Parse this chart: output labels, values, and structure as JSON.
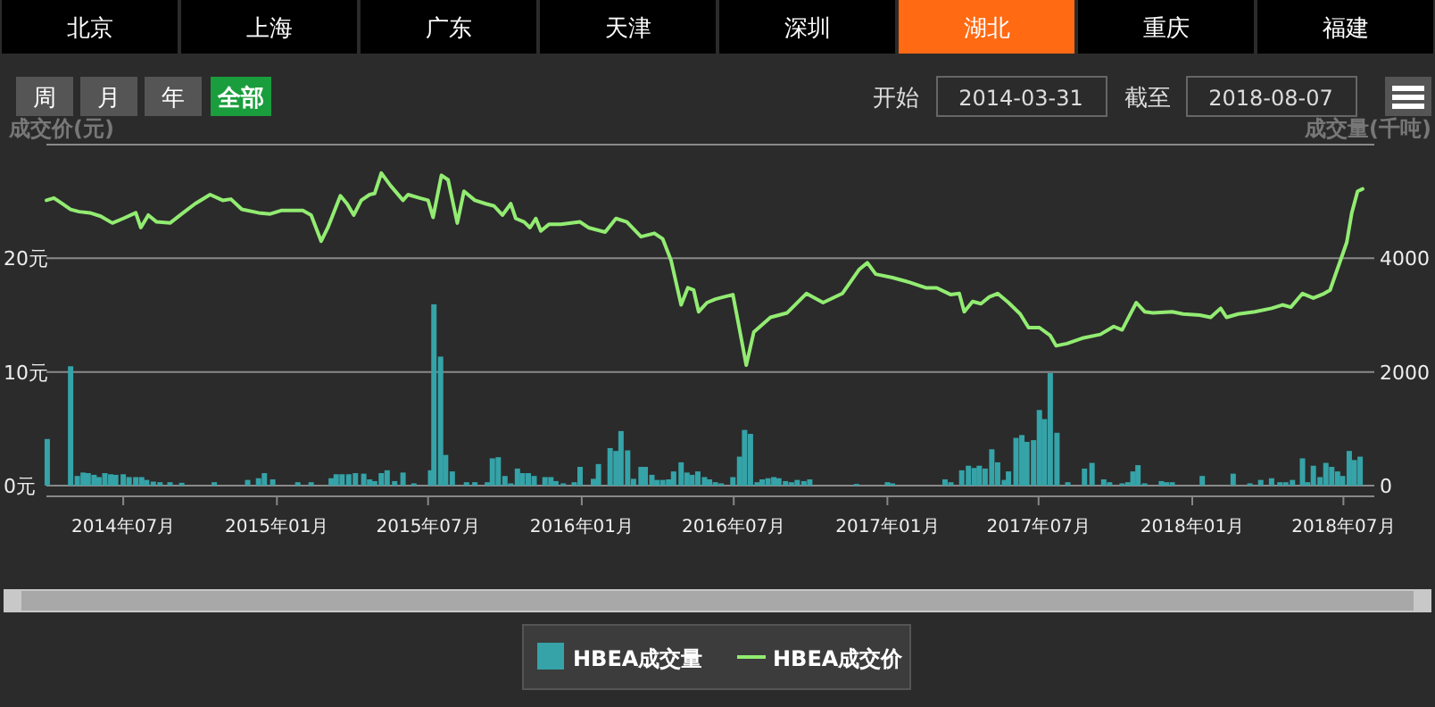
{
  "chart_data": {
    "type": "bar",
    "ylabel": "成交价(元)",
    "y2label": "成交量(千吨)",
    "annotations": [
      "北京",
      "上海",
      "广东",
      "天津",
      "深圳",
      "湖北",
      "重庆",
      "福建",
      "周",
      "月",
      "年",
      "全部",
      "开始",
      "2014-03-31",
      "截至",
      "2018-08-07"
    ],
    "xlim": [
      "2014-03-31",
      "2018-08-07"
    ],
    "xticks": [
      {
        "value": "2014-07-01",
        "label": "2014年07月"
      },
      {
        "value": "2015-01-01",
        "label": "2015年01月"
      },
      {
        "value": "2015-07-01",
        "label": "2015年07月"
      },
      {
        "value": "2016-01-01",
        "label": "2016年01月"
      },
      {
        "value": "2016-07-01",
        "label": "2016年07月"
      },
      {
        "value": "2017-01-01",
        "label": "2017年01月"
      },
      {
        "value": "2017-07-01",
        "label": "2017年07月"
      },
      {
        "value": "2018-01-01",
        "label": "2018年01月"
      },
      {
        "value": "2018-07-01",
        "label": "2018年07月"
      }
    ],
    "ylim": [
      0,
      30
    ],
    "yticks": [
      {
        "value": 0,
        "label": "0元"
      },
      {
        "value": 10,
        "label": "10元"
      },
      {
        "value": 20,
        "label": "20元"
      },
      {
        "value": 30,
        "label": null
      }
    ],
    "y2lim": [
      0,
      6000
    ],
    "y2ticks": [
      0,
      2000,
      4000
    ],
    "grid": "y",
    "legend": "bottom",
    "series": [
      {
        "name": "HBEA成交量",
        "axis": "y2",
        "color": "#35a3a8",
        "x": [
          "2014-04-01",
          "2014-04-29",
          "2014-05-07",
          "2014-05-14",
          "2014-05-20",
          "2014-05-27",
          "2014-06-02",
          "2014-06-09",
          "2014-06-16",
          "2014-06-22",
          "2014-07-01",
          "2014-07-08",
          "2014-07-16",
          "2014-07-23",
          "2014-07-29",
          "2014-08-06",
          "2014-08-14",
          "2014-08-26",
          "2014-09-09",
          "2014-10-18",
          "2014-11-27",
          "2014-12-10",
          "2014-12-17",
          "2014-12-27",
          "2015-01-26",
          "2015-02-11",
          "2015-03-07",
          "2015-03-13",
          "2015-03-20",
          "2015-03-28",
          "2015-04-05",
          "2015-04-15",
          "2015-04-22",
          "2015-04-28",
          "2015-05-06",
          "2015-05-13",
          "2015-05-22",
          "2015-06-01",
          "2015-06-14",
          "2015-07-04",
          "2015-07-08",
          "2015-07-16",
          "2015-07-22",
          "2015-07-30",
          "2015-08-16",
          "2015-08-26",
          "2015-09-10",
          "2015-09-16",
          "2015-09-23",
          "2015-10-01",
          "2015-10-08",
          "2015-10-16",
          "2015-10-22",
          "2015-10-29",
          "2015-11-05",
          "2015-11-18",
          "2015-11-25",
          "2015-12-01",
          "2015-12-10",
          "2015-12-23",
          "2015-12-30",
          "2016-01-15",
          "2016-01-21",
          "2016-02-04",
          "2016-02-11",
          "2016-02-17",
          "2016-02-25",
          "2016-03-03",
          "2016-03-12",
          "2016-03-17",
          "2016-03-25",
          "2016-03-31",
          "2016-04-07",
          "2016-04-14",
          "2016-04-20",
          "2016-04-29",
          "2016-05-06",
          "2016-05-12",
          "2016-05-19",
          "2016-05-27",
          "2016-06-02",
          "2016-06-09",
          "2016-06-16",
          "2016-06-30",
          "2016-07-08",
          "2016-07-14",
          "2016-07-21",
          "2016-07-29",
          "2016-08-04",
          "2016-08-11",
          "2016-08-18",
          "2016-08-24",
          "2016-09-01",
          "2016-09-08",
          "2016-09-15",
          "2016-09-23",
          "2016-09-30",
          "2016-11-25",
          "2017-01-01",
          "2017-01-07",
          "2017-03-11",
          "2017-03-18",
          "2017-03-31",
          "2017-04-08",
          "2017-04-15",
          "2017-04-21",
          "2017-04-28",
          "2017-05-06",
          "2017-05-13",
          "2017-05-21",
          "2017-05-26",
          "2017-06-04",
          "2017-06-11",
          "2017-06-17",
          "2017-06-25",
          "2017-07-02",
          "2017-07-08",
          "2017-07-15",
          "2017-07-23",
          "2017-08-05",
          "2017-08-25",
          "2017-09-03",
          "2017-09-17",
          "2017-09-24",
          "2017-10-09",
          "2017-10-16",
          "2017-10-22",
          "2017-10-28",
          "2017-11-05",
          "2017-11-25",
          "2017-12-01",
          "2017-12-08",
          "2018-01-13",
          "2018-02-19",
          "2018-03-11",
          "2018-03-24",
          "2018-04-06",
          "2018-04-16",
          "2018-04-23",
          "2018-05-01",
          "2018-05-13",
          "2018-05-19",
          "2018-05-26",
          "2018-06-03",
          "2018-06-10",
          "2018-06-17",
          "2018-06-24",
          "2018-06-30",
          "2018-07-08",
          "2018-07-14",
          "2018-07-21"
        ],
        "values": [
          820,
          2100,
          170,
          230,
          220,
          190,
          150,
          220,
          200,
          190,
          200,
          150,
          150,
          150,
          100,
          70,
          60,
          60,
          50,
          60,
          100,
          130,
          220,
          110,
          60,
          60,
          130,
          200,
          200,
          200,
          220,
          210,
          110,
          80,
          220,
          270,
          80,
          230,
          40,
          270,
          3190,
          2270,
          540,
          250,
          60,
          60,
          60,
          480,
          500,
          170,
          40,
          300,
          220,
          220,
          170,
          150,
          150,
          80,
          40,
          60,
          330,
          120,
          380,
          660,
          610,
          960,
          620,
          120,
          330,
          330,
          190,
          100,
          100,
          110,
          250,
          410,
          230,
          190,
          250,
          150,
          110,
          60,
          40,
          150,
          510,
          980,
          910,
          60,
          110,
          130,
          150,
          130,
          80,
          60,
          100,
          80,
          110,
          30,
          60,
          40,
          110,
          60,
          270,
          350,
          310,
          350,
          300,
          640,
          410,
          100,
          250,
          840,
          890,
          770,
          800,
          1330,
          1170,
          1980,
          930,
          60,
          300,
          400,
          110,
          60,
          40,
          60,
          250,
          360,
          40,
          80,
          60,
          60,
          170,
          210,
          40,
          100,
          130,
          60,
          60,
          100,
          480,
          60,
          350,
          150,
          400,
          330,
          250,
          170,
          610,
          450,
          510
        ]
      },
      {
        "name": "HBEA成交价",
        "type": "line",
        "color": "#92ec72",
        "x": [
          "2014-03-31",
          "2014-04-09",
          "2014-04-19",
          "2014-04-29",
          "2014-05-09",
          "2014-05-22",
          "2014-06-04",
          "2014-06-18",
          "2014-07-01",
          "2014-07-16",
          "2014-07-22",
          "2014-07-31",
          "2014-08-10",
          "2014-08-26",
          "2014-09-09",
          "2014-09-25",
          "2014-10-13",
          "2014-10-28",
          "2014-11-07",
          "2014-11-20",
          "2014-12-10",
          "2014-12-24",
          "2015-01-06",
          "2015-02-01",
          "2015-02-11",
          "2015-02-23",
          "2015-03-03",
          "2015-03-18",
          "2015-03-26",
          "2015-04-03",
          "2015-04-12",
          "2015-04-22",
          "2015-04-28",
          "2015-05-06",
          "2015-05-17",
          "2015-06-01",
          "2015-06-07",
          "2015-06-21",
          "2015-07-01",
          "2015-07-07",
          "2015-07-17",
          "2015-07-25",
          "2015-08-05",
          "2015-08-13",
          "2015-08-26",
          "2015-09-08",
          "2015-09-18",
          "2015-09-28",
          "2015-10-08",
          "2015-10-14",
          "2015-10-24",
          "2015-10-31",
          "2015-11-07",
          "2015-11-13",
          "2015-11-23",
          "2015-12-07",
          "2015-12-30",
          "2016-01-09",
          "2016-01-29",
          "2016-02-11",
          "2016-02-24",
          "2016-03-12",
          "2016-03-28",
          "2016-04-07",
          "2016-04-17",
          "2016-04-29",
          "2016-05-07",
          "2016-05-14",
          "2016-05-20",
          "2016-05-30",
          "2016-06-09",
          "2016-06-19",
          "2016-06-30",
          "2016-07-06",
          "2016-07-16",
          "2016-07-25",
          "2016-08-14",
          "2016-09-03",
          "2016-09-26",
          "2016-10-16",
          "2016-11-08",
          "2016-11-28",
          "2016-12-08",
          "2016-12-18",
          "2017-01-07",
          "2017-01-27",
          "2017-02-16",
          "2017-03-01",
          "2017-03-18",
          "2017-03-28",
          "2017-04-03",
          "2017-04-13",
          "2017-04-23",
          "2017-05-03",
          "2017-05-13",
          "2017-05-26",
          "2017-06-09",
          "2017-06-19",
          "2017-07-02",
          "2017-07-15",
          "2017-07-22",
          "2017-08-04",
          "2017-08-24",
          "2017-09-13",
          "2017-09-29",
          "2017-10-09",
          "2017-10-26",
          "2017-11-05",
          "2017-11-15",
          "2017-12-08",
          "2017-12-21",
          "2018-01-10",
          "2018-01-23",
          "2018-02-04",
          "2018-02-11",
          "2018-02-25",
          "2018-03-17",
          "2018-04-06",
          "2018-04-19",
          "2018-04-29",
          "2018-05-13",
          "2018-05-26",
          "2018-06-08",
          "2018-06-15",
          "2018-06-25",
          "2018-07-05",
          "2018-07-11",
          "2018-07-18",
          "2018-07-24"
        ],
        "values": [
          25.1,
          25.3,
          24.8,
          24.3,
          24.1,
          24.0,
          23.7,
          23.1,
          23.5,
          24.0,
          22.7,
          23.8,
          23.2,
          23.1,
          23.9,
          24.8,
          25.6,
          25.1,
          25.2,
          24.3,
          24.0,
          23.9,
          24.2,
          24.2,
          23.8,
          21.5,
          22.7,
          25.5,
          24.8,
          23.8,
          25.1,
          25.6,
          25.7,
          27.5,
          26.4,
          25.1,
          25.6,
          25.3,
          25.1,
          23.6,
          27.3,
          26.9,
          23.1,
          25.9,
          25.1,
          24.8,
          24.6,
          23.8,
          24.8,
          23.5,
          23.2,
          22.7,
          23.5,
          22.4,
          23.0,
          23.0,
          23.2,
          22.7,
          22.3,
          23.5,
          23.2,
          21.9,
          22.2,
          21.7,
          19.8,
          15.9,
          17.4,
          17.2,
          15.3,
          16.1,
          16.4,
          16.6,
          16.8,
          14.5,
          10.6,
          13.5,
          14.8,
          15.2,
          16.9,
          16.1,
          16.9,
          19.0,
          19.6,
          18.6,
          18.3,
          17.9,
          17.4,
          17.4,
          16.8,
          16.9,
          15.3,
          16.2,
          16.0,
          16.6,
          16.9,
          16.1,
          15.1,
          13.9,
          13.9,
          13.2,
          12.3,
          12.5,
          13.0,
          13.3,
          14.0,
          13.7,
          16.1,
          15.3,
          15.2,
          15.3,
          15.1,
          15.0,
          14.8,
          15.6,
          14.8,
          15.1,
          15.3,
          15.6,
          15.9,
          15.7,
          16.9,
          16.5,
          16.9,
          17.2,
          19.3,
          21.4,
          24.0,
          25.9,
          26.1
        ]
      }
    ]
  }
}
